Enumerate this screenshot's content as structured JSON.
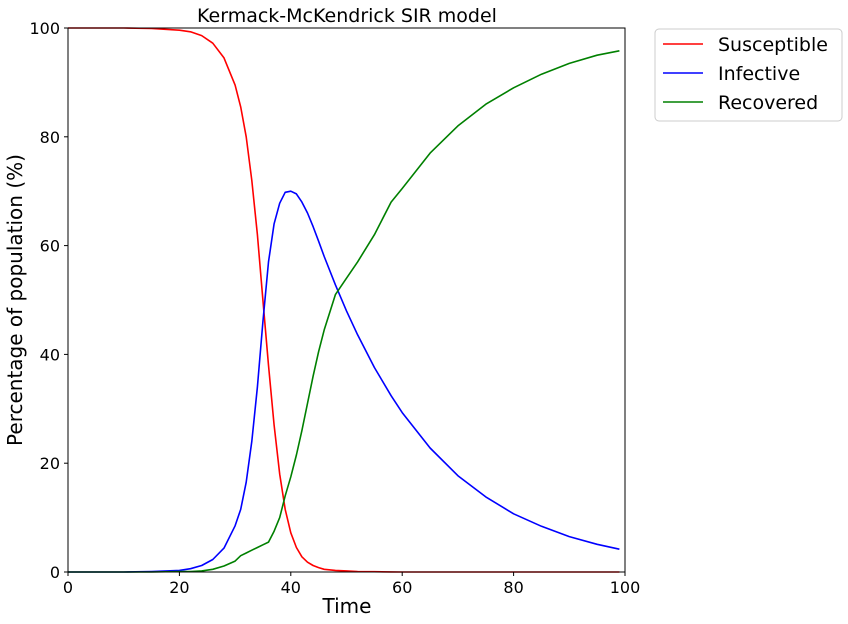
{
  "chart_data": {
    "type": "line",
    "title": "Kermack-McKendrick SIR model",
    "xlabel": "Time",
    "ylabel": "Percentage of population (%)",
    "xlim": [
      0,
      100
    ],
    "ylim": [
      0,
      100
    ],
    "xticks": [
      "0",
      "20",
      "40",
      "60",
      "80",
      "100"
    ],
    "yticks": [
      "0",
      "20",
      "40",
      "60",
      "80",
      "100"
    ],
    "grid": false,
    "legend_position": "outside-top-right",
    "x": [
      0,
      5,
      10,
      15,
      20,
      22,
      24,
      26,
      28,
      30,
      31,
      32,
      33,
      34,
      35,
      36,
      37,
      38,
      39,
      40,
      41,
      42,
      43,
      44,
      45,
      46,
      48,
      50,
      52,
      55,
      58,
      60,
      65,
      70,
      75,
      80,
      85,
      90,
      95,
      99
    ],
    "series": [
      {
        "name": "Susceptible",
        "color": "#ff0000",
        "values": [
          100,
          100,
          100,
          99.9,
          99.6,
          99.3,
          98.6,
          97.2,
          94.5,
          89.5,
          85.5,
          80,
          72,
          62,
          50,
          38,
          27,
          18,
          11.5,
          7.2,
          4.5,
          2.8,
          1.8,
          1.2,
          0.8,
          0.5,
          0.3,
          0.2,
          0.1,
          0.05,
          0.02,
          0,
          0,
          0,
          0,
          0,
          0,
          0,
          0,
          0
        ]
      },
      {
        "name": "Infective",
        "color": "#0000ff",
        "values": [
          0,
          0,
          0,
          0.1,
          0.3,
          0.6,
          1.2,
          2.3,
          4.4,
          8.5,
          11.5,
          16.5,
          24,
          34,
          46,
          57,
          64,
          67.8,
          69.8,
          70,
          69.5,
          68,
          66,
          63.5,
          60.8,
          58,
          52.8,
          48,
          43.6,
          37.6,
          32.4,
          29.3,
          22.8,
          17.7,
          13.8,
          10.7,
          8.4,
          6.5,
          5.1,
          4.2
        ]
      },
      {
        "name": "Recovered",
        "color": "#008000",
        "values": [
          0,
          0,
          0,
          0,
          0.1,
          0.1,
          0.2,
          0.5,
          1.1,
          2,
          3,
          3.5,
          4,
          4.5,
          5,
          5.5,
          7.5,
          10,
          14,
          17.5,
          21.5,
          26,
          31,
          36,
          40.5,
          44.5,
          51,
          54,
          57,
          62,
          68,
          70.5,
          77,
          82,
          86,
          89,
          91.5,
          93.5,
          95,
          95.8
        ]
      }
    ]
  }
}
